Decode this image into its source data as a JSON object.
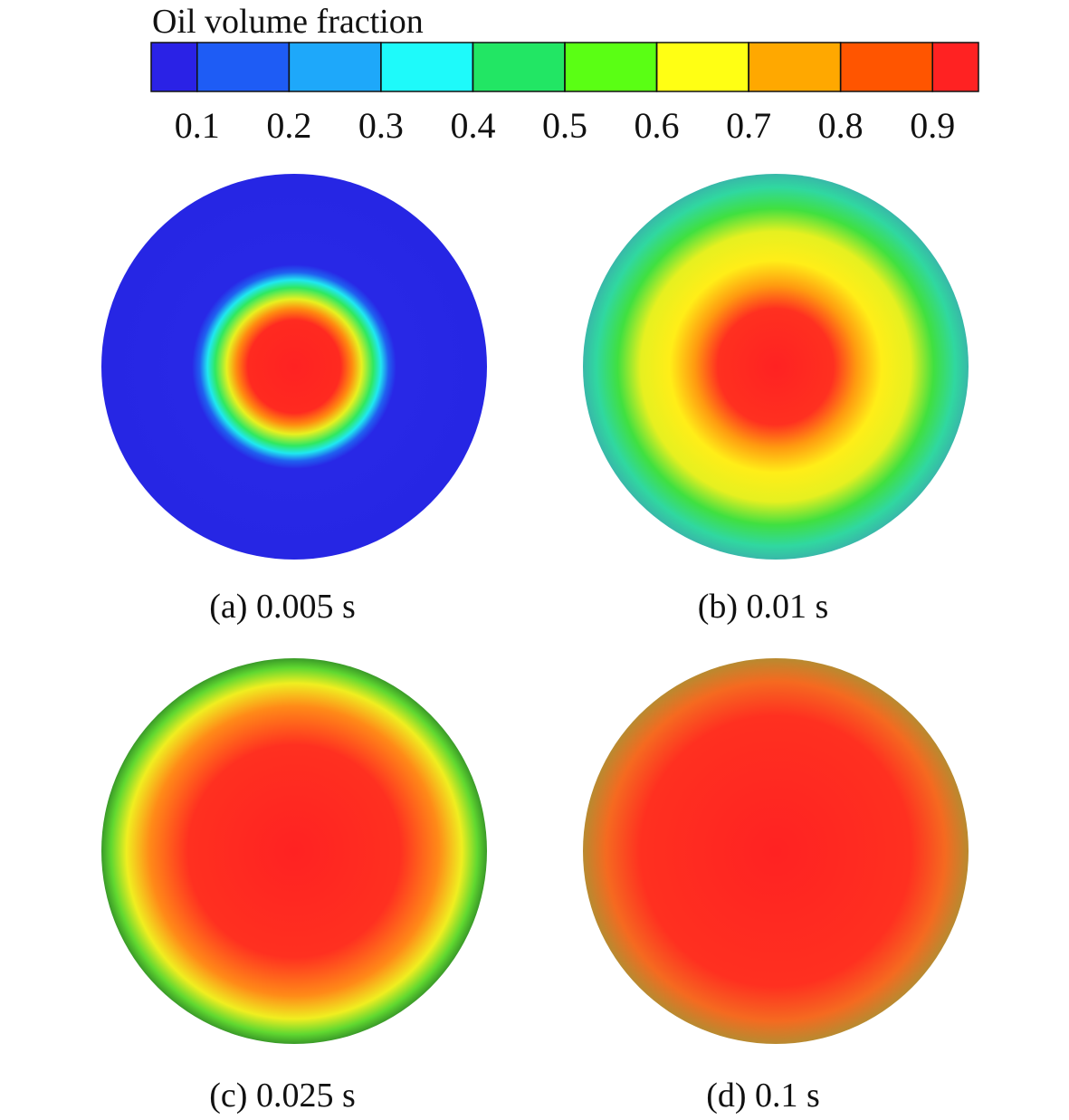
{
  "colorbar": {
    "title": "Oil volume fraction",
    "range": [
      0.05,
      0.95
    ],
    "ticks": [
      0.1,
      0.2,
      0.3,
      0.4,
      0.5,
      0.6,
      0.7,
      0.8,
      0.9
    ],
    "colors": [
      "#2a22e6",
      "#1e5cf5",
      "#1ea8fa",
      "#1efafa",
      "#22e664",
      "#5aff14",
      "#ffff14",
      "#ffa800",
      "#ff5500",
      "#ff2222"
    ]
  },
  "panels": [
    {
      "label": "(a) 0.005 s"
    },
    {
      "label": "(b) 0.01 s"
    },
    {
      "label": "(c) 0.025 s"
    },
    {
      "label": "(d) 0.1 s"
    }
  ]
}
